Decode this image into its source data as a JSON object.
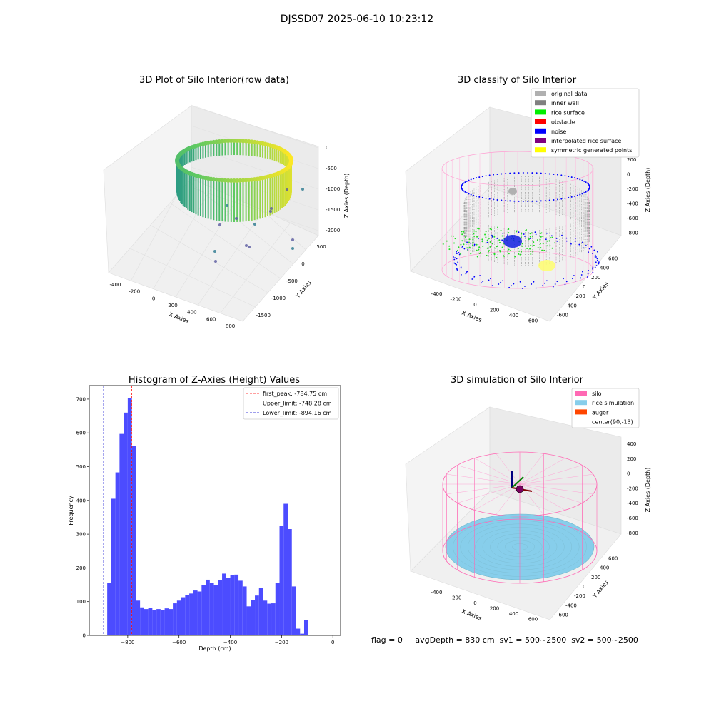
{
  "suptitle": "DJSSD07 2025-06-10 10:23:12",
  "colors": {
    "hist_bar": "#4c4cff",
    "first_peak": "#ff0000",
    "limit_line": "#0000cc",
    "pane": "#f2f2f2",
    "silo": "#ff69b4",
    "rice": "#87cecc",
    "auger": "#ff4500"
  },
  "chart_data": [
    {
      "type": "scatter3d",
      "title": "3D Plot of Silo Interior(row data)",
      "xlabel": "X Axies",
      "ylabel": "Y Axies",
      "zlabel": "Z Axies (Depth)",
      "xticks": [
        "-400",
        "-200",
        "0",
        "200",
        "400",
        "600",
        "800"
      ],
      "yticks": [
        "500",
        "0",
        "-500",
        "-1000",
        "-1500"
      ],
      "zticks": [
        "0",
        "-500",
        "-1000",
        "-1500",
        "-2000"
      ],
      "description_points": "ring-shaped point cloud colored by depth (viridis) plus scattered outliers"
    },
    {
      "type": "scatter3d",
      "title": "3D classify of Silo Interior",
      "xlabel": "X Axies",
      "ylabel": "Y Axies",
      "zlabel": "Z Axies (Depth)",
      "xticks": [
        "-400",
        "-200",
        "0",
        "200",
        "400",
        "600"
      ],
      "yticks": [
        "600",
        "400",
        "200",
        "0",
        "-200",
        "-400",
        "-600"
      ],
      "zticks": [
        "200",
        "0",
        "-200",
        "-400",
        "-600",
        "-800"
      ],
      "legend": [
        {
          "label": "original data",
          "color": "#b0b0b0"
        },
        {
          "label": "inner wall",
          "color": "#808080"
        },
        {
          "label": "rice surface",
          "color": "#00ee00"
        },
        {
          "label": "obstacle",
          "color": "#ff0000"
        },
        {
          "label": "noise",
          "color": "#0000ff"
        },
        {
          "label": "interpolated rice surface",
          "color": "#800080"
        },
        {
          "label": "symmetric generated points",
          "color": "#ffff00"
        }
      ]
    },
    {
      "type": "bar",
      "title": "Histogram of Z-Axies (Height) Values",
      "xlabel": "Depth (cm)",
      "ylabel": "Frequency",
      "xlim": [
        -950,
        30
      ],
      "ylim": [
        0,
        740
      ],
      "xticks": [
        -800,
        -600,
        -400,
        -200,
        0
      ],
      "yticks": [
        0,
        100,
        200,
        300,
        400,
        500,
        600,
        700
      ],
      "bin_start": -880,
      "bin_width": 16,
      "values": [
        155,
        405,
        483,
        597,
        660,
        704,
        562,
        103,
        83,
        78,
        82,
        76,
        78,
        76,
        80,
        78,
        95,
        103,
        113,
        120,
        124,
        133,
        130,
        148,
        165,
        155,
        150,
        163,
        183,
        170,
        178,
        180,
        162,
        145,
        86,
        104,
        118,
        140,
        103,
        94,
        95,
        155,
        325,
        390,
        315,
        145,
        20,
        5,
        45
      ],
      "lines": [
        {
          "name": "first_peak: -784.75 cm",
          "x": -784.75,
          "color": "#ff0000"
        },
        {
          "name": "Upper_limit: -748.28 cm",
          "x": -748.28,
          "color": "#0000cc"
        },
        {
          "name": "Lower_limit: -894.16 cm",
          "x": -894.16,
          "color": "#0000cc"
        }
      ]
    },
    {
      "type": "scatter3d",
      "title": "3D simulation of Silo Interior",
      "xlabel": "X Axies",
      "ylabel": "Y Axies",
      "zlabel": "Z Axies (Depth)",
      "xticks": [
        "-400",
        "-200",
        "0",
        "200",
        "400",
        "600"
      ],
      "yticks": [
        "600",
        "400",
        "200",
        "0",
        "-200",
        "-400",
        "-600"
      ],
      "zticks": [
        "400",
        "200",
        "0",
        "-200",
        "-400",
        "-600",
        "-800"
      ],
      "legend": [
        {
          "label": "silo",
          "color": "#ff69b4"
        },
        {
          "label": "rice simulation",
          "color": "#87ceeb"
        },
        {
          "label": "auger",
          "color": "#ff4500"
        },
        {
          "label": "center(90,-13)",
          "color": ""
        }
      ]
    }
  ],
  "footer": "flag = 0     avgDepth = 830 cm  sv1 = 500~2500  sv2 = 500~2500"
}
